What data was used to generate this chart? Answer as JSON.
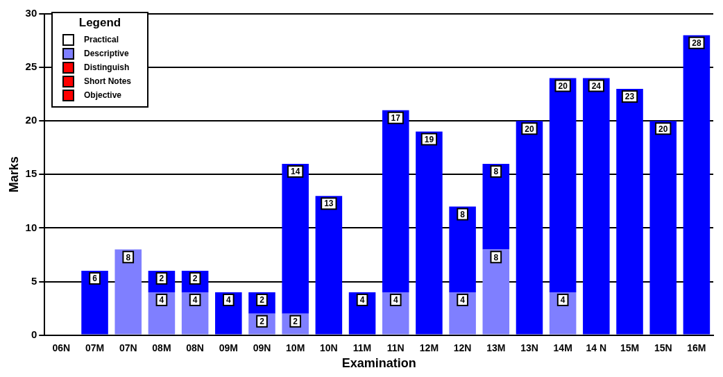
{
  "chart_data": {
    "type": "bar",
    "stacked": true,
    "xlabel": "Examination",
    "ylabel": "Marks",
    "legend_title": "Legend",
    "legend": "top left",
    "grid": "y",
    "data_labels": true,
    "categories": [
      "06N",
      "07M",
      "07N",
      "08M",
      "08N",
      "09M",
      "09N",
      "10M",
      "10N",
      "11M",
      "11N",
      "12M",
      "12N",
      "13M",
      "13N",
      "14M",
      "14 N",
      "15M",
      "15N",
      "16M"
    ],
    "ylim": [
      0,
      30
    ],
    "yticks": [
      0,
      5,
      10,
      15,
      20,
      25,
      30
    ],
    "series": [
      {
        "name": "Practical",
        "color": "#ffffff",
        "values": [
          null,
          null,
          null,
          null,
          null,
          null,
          null,
          null,
          null,
          null,
          null,
          null,
          null,
          null,
          null,
          null,
          null,
          null,
          null,
          null
        ]
      },
      {
        "name": "Descriptive",
        "color": "#7f7fff",
        "values": [
          null,
          null,
          8,
          4,
          4,
          null,
          2,
          2,
          null,
          null,
          4,
          null,
          4,
          8,
          null,
          4,
          null,
          null,
          null,
          null
        ]
      },
      {
        "color": "#0000ff",
        "values": [
          null,
          6,
          null,
          2,
          2,
          4,
          2,
          14,
          13,
          4,
          17,
          19,
          8,
          8,
          20,
          20,
          24,
          23,
          20,
          28
        ]
      },
      {
        "name": "Distinguish",
        "color": "#ff0000",
        "values": [
          null,
          null,
          null,
          null,
          null,
          null,
          null,
          null,
          null,
          null,
          null,
          null,
          null,
          null,
          null,
          null,
          null,
          null,
          null,
          null
        ]
      },
      {
        "name": "Short Notes",
        "color": "#ff0000",
        "values": [
          null,
          null,
          null,
          null,
          null,
          null,
          null,
          null,
          null,
          null,
          null,
          null,
          null,
          null,
          null,
          null,
          null,
          null,
          null,
          null
        ]
      },
      {
        "name": "Objective",
        "color": "#ff0000",
        "values": [
          null,
          null,
          null,
          null,
          null,
          null,
          null,
          null,
          null,
          null,
          null,
          null,
          null,
          null,
          null,
          null,
          null,
          null,
          null,
          null
        ]
      }
    ]
  }
}
